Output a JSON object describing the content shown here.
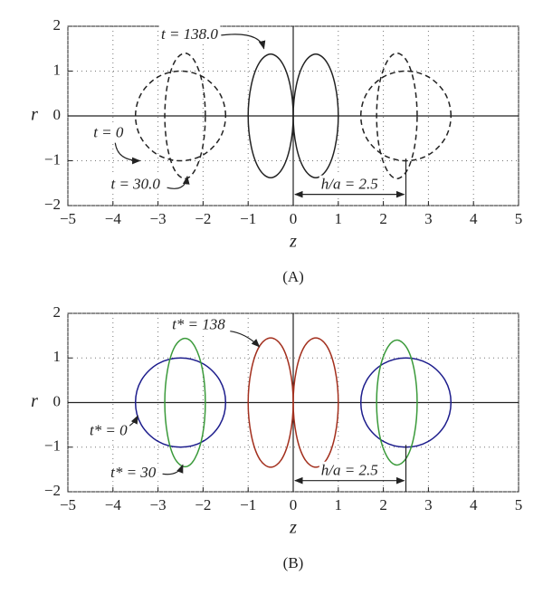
{
  "chart_data": [
    {
      "type": "line",
      "xlabel": "z",
      "ylabel": "r",
      "caption": "(A)",
      "xlim": [
        -5,
        5
      ],
      "ylim": [
        -2,
        2
      ],
      "xticks": [
        {
          "value": -5,
          "label": "−5"
        },
        {
          "value": -4,
          "label": "−4"
        },
        {
          "value": -3,
          "label": "−3"
        },
        {
          "value": -2,
          "label": "−2"
        },
        {
          "value": -1,
          "label": "−1"
        },
        0,
        1,
        2,
        3,
        4,
        5
      ],
      "yticks": [
        {
          "value": -2,
          "label": "−2"
        },
        {
          "value": -1,
          "label": "−1"
        },
        0,
        1,
        2
      ],
      "grid": true,
      "series": [
        {
          "color": "#222222",
          "dash": true,
          "x": [
            -1.5,
            -1.63,
            -2,
            -2.5,
            -3,
            -3.37,
            -3.5,
            -3.37,
            -3,
            -2.5,
            -2,
            -1.63
          ],
          "values": [
            0,
            0.5,
            0.87,
            1,
            0.87,
            0.5,
            0,
            -0.5,
            -0.87,
            -1,
            -0.87,
            -0.5
          ]
        },
        {
          "color": "#222222",
          "dash": true,
          "x": [
            3.5,
            3.37,
            3,
            2.5,
            2,
            1.63,
            1.5,
            1.63,
            2,
            2.5,
            3,
            3.37
          ],
          "values": [
            0,
            0.5,
            0.87,
            1,
            0.87,
            0.5,
            0,
            -0.5,
            -0.87,
            -1,
            -0.87,
            -0.5
          ]
        },
        {
          "color": "#222222",
          "dash": true,
          "x": [
            -1.95,
            -2.01,
            -2.18,
            -2.4,
            -2.63,
            -2.79,
            -2.85,
            -2.79,
            -2.63,
            -2.4,
            -2.18,
            -2.01
          ],
          "values": [
            0,
            0.7,
            1.21,
            1.4,
            1.21,
            0.7,
            0,
            -0.7,
            -1.21,
            -1.4,
            -1.21,
            -0.7
          ]
        },
        {
          "color": "#222222",
          "dash": true,
          "x": [
            2.75,
            2.69,
            2.53,
            2.3,
            2.08,
            1.91,
            1.85,
            1.91,
            2.08,
            2.3,
            2.53,
            2.69
          ],
          "values": [
            0,
            0.7,
            1.21,
            1.4,
            1.21,
            0.7,
            0,
            -0.7,
            -1.21,
            -1.4,
            -1.21,
            -0.7
          ]
        },
        {
          "color": "#222222",
          "dash": false,
          "x": [
            -1,
            -0.93,
            -0.75,
            -0.5,
            -0.25,
            -0.07,
            0,
            -0.07,
            -0.25,
            -0.5,
            -0.75,
            -0.93
          ],
          "values": [
            0,
            0.69,
            1.19,
            1.38,
            1.19,
            0.69,
            0,
            -0.69,
            -1.19,
            -1.38,
            -1.19,
            -0.69
          ]
        },
        {
          "color": "#222222",
          "dash": false,
          "x": [
            1,
            0.93,
            0.75,
            0.5,
            0.25,
            0.07,
            0,
            0.07,
            0.25,
            0.5,
            0.75,
            0.93
          ],
          "values": [
            0,
            0.69,
            1.19,
            1.38,
            1.19,
            0.69,
            0,
            -0.69,
            -1.19,
            -1.38,
            -1.19,
            -0.69
          ]
        }
      ],
      "annotations": [
        "t = 138.0",
        "t = 0",
        "t = 30.0",
        "h/a = 2.5"
      ]
    },
    {
      "type": "line",
      "xlabel": "z",
      "ylabel": "r",
      "caption": "(B)",
      "xlim": [
        -5,
        5
      ],
      "ylim": [
        -2,
        2
      ],
      "xticks": [
        {
          "value": -5,
          "label": "−5"
        },
        {
          "value": -4,
          "label": "−4"
        },
        {
          "value": -3,
          "label": "−3"
        },
        {
          "value": -2,
          "label": "−2"
        },
        {
          "value": -1,
          "label": "−1"
        },
        0,
        1,
        2,
        3,
        4,
        5
      ],
      "yticks": [
        {
          "value": -2,
          "label": "−2"
        },
        {
          "value": -1,
          "label": "−1"
        },
        0,
        1,
        2
      ],
      "grid": true,
      "series": [
        {
          "color": "#1c1c8c",
          "dash": false,
          "x": [
            -1.5,
            -1.63,
            -2,
            -2.5,
            -3,
            -3.37,
            -3.5,
            -3.37,
            -3,
            -2.5,
            -2,
            -1.63
          ],
          "values": [
            0,
            0.5,
            0.87,
            1,
            0.87,
            0.5,
            0,
            -0.5,
            -0.87,
            -1,
            -0.87,
            -0.5
          ]
        },
        {
          "color": "#1c1c8c",
          "dash": false,
          "x": [
            3.5,
            3.37,
            3,
            2.5,
            2,
            1.63,
            1.5,
            1.63,
            2,
            2.5,
            3,
            3.37
          ],
          "values": [
            0,
            0.5,
            0.87,
            1,
            0.87,
            0.5,
            0,
            -0.5,
            -0.87,
            -1,
            -0.87,
            -0.5
          ]
        },
        {
          "color": "#3a9a3a",
          "dash": false,
          "x": [
            -1.95,
            -2.01,
            -2.18,
            -2.4,
            -2.63,
            -2.79,
            -2.85,
            -2.79,
            -2.63,
            -2.4,
            -2.18,
            -2.01
          ],
          "values": [
            0,
            0.72,
            1.25,
            1.44,
            1.25,
            0.72,
            0,
            -0.72,
            -1.25,
            -1.44,
            -1.25,
            -0.72
          ]
        },
        {
          "color": "#3a9a3a",
          "dash": false,
          "x": [
            2.75,
            2.69,
            2.53,
            2.3,
            2.08,
            1.91,
            1.85,
            1.91,
            2.08,
            2.3,
            2.53,
            2.69
          ],
          "values": [
            0,
            0.7,
            1.21,
            1.4,
            1.21,
            0.7,
            0,
            -0.7,
            -1.21,
            -1.4,
            -1.21,
            -0.7
          ]
        },
        {
          "color": "#a3301e",
          "dash": false,
          "x": [
            -1,
            -0.93,
            -0.75,
            -0.5,
            -0.25,
            -0.07,
            0,
            -0.07,
            -0.25,
            -0.5,
            -0.75,
            -0.93
          ],
          "values": [
            0,
            0.73,
            1.26,
            1.45,
            1.26,
            0.73,
            0,
            -0.73,
            -1.26,
            -1.45,
            -1.26,
            -0.73
          ]
        },
        {
          "color": "#a3301e",
          "dash": false,
          "x": [
            1,
            0.93,
            0.75,
            0.5,
            0.25,
            0.07,
            0,
            0.07,
            0.25,
            0.5,
            0.75,
            0.93
          ],
          "values": [
            0,
            0.73,
            1.26,
            1.45,
            1.26,
            0.73,
            0,
            -0.73,
            -1.26,
            -1.45,
            -1.26,
            -0.73
          ]
        }
      ],
      "annotations": [
        "t* = 138",
        "t* = 0",
        "t* = 30",
        "h/a = 2.5"
      ]
    }
  ]
}
